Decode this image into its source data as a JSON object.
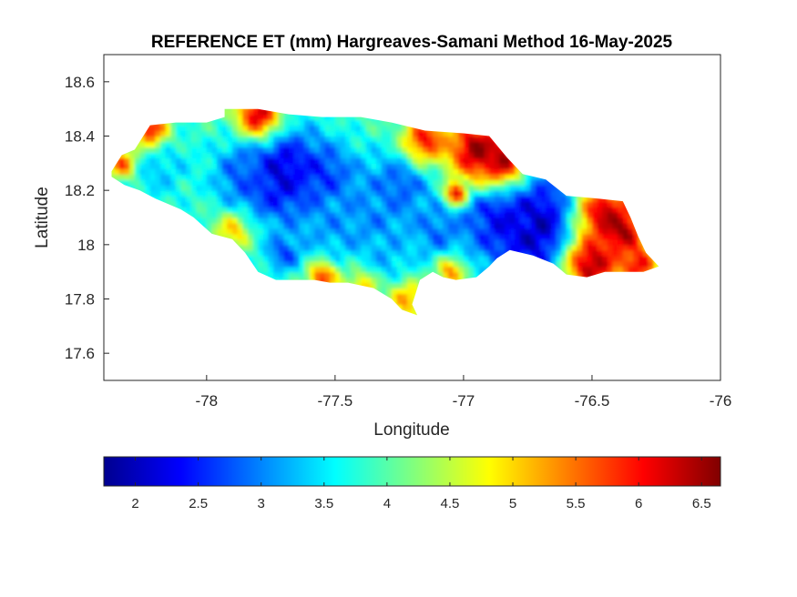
{
  "chart_data": {
    "type": "heatmap",
    "title": "REFERENCE ET (mm) Hargreaves-Samani Method  16-May-2025",
    "xlabel": "Longitude",
    "ylabel": "Latitude",
    "xlim": [
      -78.4,
      -76
    ],
    "ylim": [
      17.5,
      18.7
    ],
    "x_ticks": [
      -78,
      -77.5,
      -77,
      -76.5,
      -76
    ],
    "x_tick_labels": [
      "-78",
      "-77.5",
      "-77",
      "-76.5",
      "-76"
    ],
    "y_ticks": [
      17.6,
      17.8,
      18,
      18.2,
      18.4,
      18.6
    ],
    "y_tick_labels": [
      "17.6",
      "17.8",
      "18",
      "18.2",
      "18.4",
      "18.6"
    ],
    "colormap": "jet",
    "colorbar": {
      "placement": "bottom",
      "range": [
        1.75,
        6.65
      ],
      "ticks": [
        2,
        2.5,
        3,
        3.5,
        4,
        4.5,
        5,
        5.5,
        6,
        6.5
      ],
      "tick_labels": [
        "2",
        "2.5",
        "3",
        "3.5",
        "4",
        "4.5",
        "5",
        "5.5",
        "6",
        "6.5"
      ]
    },
    "grid": false,
    "region_outline": [
      [
        -78.37,
        18.27
      ],
      [
        -78.33,
        18.33
      ],
      [
        -78.28,
        18.35
      ],
      [
        -78.22,
        18.44
      ],
      [
        -78.12,
        18.45
      ],
      [
        -78.0,
        18.45
      ],
      [
        -77.93,
        18.47
      ],
      [
        -77.93,
        18.5
      ],
      [
        -77.8,
        18.5
      ],
      [
        -77.68,
        18.48
      ],
      [
        -77.55,
        18.47
      ],
      [
        -77.4,
        18.47
      ],
      [
        -77.28,
        18.45
      ],
      [
        -77.15,
        18.42
      ],
      [
        -77.0,
        18.41
      ],
      [
        -76.9,
        18.4
      ],
      [
        -76.83,
        18.32
      ],
      [
        -76.77,
        18.26
      ],
      [
        -76.68,
        18.24
      ],
      [
        -76.6,
        18.18
      ],
      [
        -76.48,
        18.17
      ],
      [
        -76.38,
        18.16
      ],
      [
        -76.35,
        18.1
      ],
      [
        -76.32,
        18.03
      ],
      [
        -76.29,
        17.97
      ],
      [
        -76.24,
        17.92
      ],
      [
        -76.3,
        17.9
      ],
      [
        -76.45,
        17.9
      ],
      [
        -76.52,
        17.88
      ],
      [
        -76.6,
        17.89
      ],
      [
        -76.65,
        17.93
      ],
      [
        -76.73,
        17.96
      ],
      [
        -76.82,
        17.98
      ],
      [
        -76.87,
        17.95
      ],
      [
        -76.9,
        17.92
      ],
      [
        -76.95,
        17.88
      ],
      [
        -77.03,
        17.87
      ],
      [
        -77.08,
        17.88
      ],
      [
        -77.12,
        17.9
      ],
      [
        -77.17,
        17.87
      ],
      [
        -77.2,
        17.78
      ],
      [
        -77.18,
        17.74
      ],
      [
        -77.24,
        17.76
      ],
      [
        -77.28,
        17.8
      ],
      [
        -77.35,
        17.84
      ],
      [
        -77.45,
        17.86
      ],
      [
        -77.52,
        17.86
      ],
      [
        -77.58,
        17.87
      ],
      [
        -77.73,
        17.87
      ],
      [
        -77.8,
        17.9
      ],
      [
        -77.85,
        17.97
      ],
      [
        -77.9,
        18.02
      ],
      [
        -77.98,
        18.04
      ],
      [
        -78.05,
        18.1
      ],
      [
        -78.1,
        18.13
      ],
      [
        -78.2,
        18.17
      ],
      [
        -78.26,
        18.2
      ],
      [
        -78.32,
        18.22
      ],
      [
        -78.37,
        18.25
      ]
    ],
    "et_field": {
      "base": 3.9,
      "hotspots": [
        {
          "lon": -77.72,
          "lat": 18.26,
          "value": 1.9,
          "radius": 0.12
        },
        {
          "lon": -77.55,
          "lat": 18.23,
          "value": 2.4,
          "radius": 0.1
        },
        {
          "lon": -77.25,
          "lat": 18.22,
          "value": 2.7,
          "radius": 0.09
        },
        {
          "lon": -77.85,
          "lat": 18.25,
          "value": 2.8,
          "radius": 0.08
        },
        {
          "lon": -76.7,
          "lat": 18.06,
          "value": 1.85,
          "radius": 0.14
        },
        {
          "lon": -76.85,
          "lat": 18.12,
          "value": 2.3,
          "radius": 0.12
        },
        {
          "lon": -77.35,
          "lat": 18.1,
          "value": 3.0,
          "radius": 0.1
        },
        {
          "lon": -77.5,
          "lat": 18.08,
          "value": 3.1,
          "radius": 0.1
        },
        {
          "lon": -77.1,
          "lat": 18.05,
          "value": 2.9,
          "radius": 0.08
        },
        {
          "lon": -78.2,
          "lat": 18.3,
          "value": 3.3,
          "radius": 0.1
        },
        {
          "lon": -77.7,
          "lat": 17.97,
          "value": 2.7,
          "radius": 0.05
        },
        {
          "lon": -77.3,
          "lat": 17.94,
          "value": 3.2,
          "radius": 0.07
        },
        {
          "lon": -77.8,
          "lat": 18.48,
          "value": 6.3,
          "radius": 0.06
        },
        {
          "lon": -76.95,
          "lat": 18.35,
          "value": 6.6,
          "radius": 0.08
        },
        {
          "lon": -76.85,
          "lat": 18.32,
          "value": 6.4,
          "radius": 0.07
        },
        {
          "lon": -77.15,
          "lat": 18.39,
          "value": 6.0,
          "radius": 0.06
        },
        {
          "lon": -76.45,
          "lat": 18.12,
          "value": 6.3,
          "radius": 0.08
        },
        {
          "lon": -76.38,
          "lat": 18.05,
          "value": 6.5,
          "radius": 0.06
        },
        {
          "lon": -76.5,
          "lat": 17.93,
          "value": 6.5,
          "radius": 0.08
        },
        {
          "lon": -76.32,
          "lat": 17.93,
          "value": 6.2,
          "radius": 0.05
        },
        {
          "lon": -78.22,
          "lat": 18.43,
          "value": 6.0,
          "radius": 0.05
        },
        {
          "lon": -78.33,
          "lat": 18.3,
          "value": 5.6,
          "radius": 0.04
        },
        {
          "lon": -77.03,
          "lat": 18.19,
          "value": 6.2,
          "radius": 0.03
        },
        {
          "lon": -77.55,
          "lat": 17.88,
          "value": 5.8,
          "radius": 0.04
        },
        {
          "lon": -77.22,
          "lat": 17.8,
          "value": 5.2,
          "radius": 0.05
        },
        {
          "lon": -77.4,
          "lat": 17.84,
          "value": 5.0,
          "radius": 0.05
        },
        {
          "lon": -77.05,
          "lat": 17.9,
          "value": 5.3,
          "radius": 0.04
        },
        {
          "lon": -77.9,
          "lat": 18.05,
          "value": 5.0,
          "radius": 0.05
        }
      ]
    }
  }
}
